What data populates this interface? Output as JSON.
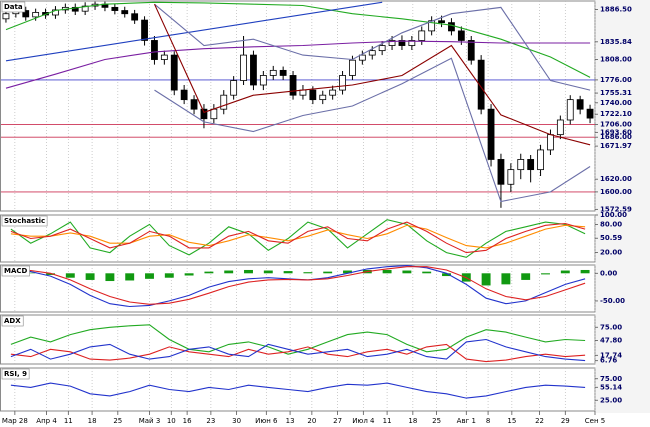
{
  "chart_data": [
    {
      "type": "candlestick",
      "title": "Data",
      "xlim": [
        -0.5,
        59.5
      ],
      "ylim": [
        1570,
        1900
      ],
      "up_color": "#ffffff",
      "down_color": "#000000",
      "open": [
        1872,
        1880,
        1885,
        1875,
        1882,
        1878,
        1886,
        1890,
        1884,
        1892,
        1895,
        1890,
        1885,
        1880,
        1870,
        1838,
        1808,
        1815,
        1760,
        1745,
        1730,
        1715,
        1730,
        1752,
        1775,
        1815,
        1768,
        1783,
        1791,
        1783,
        1752,
        1760,
        1745,
        1752,
        1760,
        1783,
        1807,
        1815,
        1822,
        1830,
        1838,
        1830,
        1838,
        1853,
        1869,
        1866,
        1853,
        1838,
        1807,
        1730,
        1651,
        1612,
        1635,
        1651,
        1635,
        1666,
        1690,
        1713,
        1745,
        1730
      ],
      "high": [
        1886,
        1891,
        1891,
        1888,
        1888,
        1892,
        1896,
        1896,
        1898,
        1899,
        1899,
        1896,
        1891,
        1886,
        1876,
        1845,
        1822,
        1821,
        1768,
        1752,
        1738,
        1738,
        1760,
        1782,
        1845,
        1822,
        1790,
        1798,
        1797,
        1790,
        1768,
        1766,
        1759,
        1767,
        1790,
        1814,
        1822,
        1829,
        1837,
        1845,
        1846,
        1845,
        1860,
        1876,
        1877,
        1873,
        1860,
        1845,
        1815,
        1738,
        1660,
        1645,
        1660,
        1658,
        1674,
        1698,
        1720,
        1752,
        1751,
        1737
      ],
      "low": [
        1866,
        1874,
        1869,
        1869,
        1872,
        1872,
        1880,
        1878,
        1878,
        1886,
        1884,
        1879,
        1874,
        1864,
        1830,
        1800,
        1800,
        1752,
        1738,
        1722,
        1700,
        1708,
        1722,
        1745,
        1768,
        1760,
        1760,
        1776,
        1776,
        1745,
        1745,
        1738,
        1738,
        1745,
        1753,
        1776,
        1800,
        1808,
        1815,
        1823,
        1823,
        1823,
        1831,
        1846,
        1859,
        1846,
        1831,
        1800,
        1722,
        1640,
        1575,
        1600,
        1620,
        1615,
        1625,
        1658,
        1683,
        1706,
        1722,
        1708
      ],
      "close": [
        1880,
        1885,
        1875,
        1882,
        1878,
        1886,
        1890,
        1884,
        1892,
        1895,
        1890,
        1885,
        1880,
        1870,
        1838,
        1808,
        1815,
        1760,
        1745,
        1730,
        1715,
        1730,
        1752,
        1775,
        1815,
        1768,
        1783,
        1791,
        1783,
        1752,
        1760,
        1745,
        1752,
        1760,
        1783,
        1807,
        1815,
        1822,
        1830,
        1838,
        1830,
        1838,
        1853,
        1869,
        1866,
        1853,
        1838,
        1807,
        1730,
        1651,
        1612,
        1635,
        1651,
        1635,
        1666,
        1690,
        1713,
        1745,
        1730,
        1716
      ],
      "series": [
        {
          "color": "#22aa22",
          "x": [
            0,
            5,
            10,
            15,
            20,
            25,
            30,
            35,
            40,
            45,
            50,
            55,
            59
          ],
          "values": [
            1855,
            1885,
            1895,
            1898,
            1897,
            1895,
            1893,
            1880,
            1872,
            1862,
            1840,
            1812,
            1780
          ]
        },
        {
          "color": "#7a1fa2",
          "x": [
            0,
            5,
            10,
            15,
            20,
            25,
            30,
            35,
            40,
            45,
            50,
            55,
            59
          ],
          "values": [
            1763,
            1785,
            1808,
            1820,
            1825,
            1828,
            1830,
            1834,
            1837,
            1836,
            1834,
            1834,
            1834
          ]
        },
        {
          "color": "#1f3fbf",
          "x": [
            0,
            38
          ],
          "values": [
            1806,
            1898
          ]
        },
        {
          "color": "#6b6fa8",
          "x": [
            0,
            5,
            10,
            15,
            20,
            25,
            30,
            35,
            40,
            45,
            50,
            55,
            59
          ],
          "values": [
            null,
            null,
            null,
            1895,
            1830,
            1840,
            1815,
            1808,
            1850,
            1880,
            1890,
            1775,
            1760
          ]
        },
        {
          "color": "#6b6fa8",
          "x": [
            0,
            5,
            10,
            15,
            20,
            25,
            30,
            35,
            40,
            45,
            50,
            55,
            59
          ],
          "values": [
            null,
            null,
            null,
            1760,
            1710,
            1695,
            1720,
            1735,
            1770,
            1810,
            1585,
            1600,
            1640
          ]
        },
        {
          "color": "#8b0000",
          "x": [
            0,
            5,
            10,
            15,
            20,
            25,
            30,
            35,
            40,
            45,
            50,
            55,
            59
          ],
          "values": [
            null,
            null,
            null,
            1895,
            1725,
            1752,
            1760,
            1768,
            1783,
            1830,
            1721,
            1690,
            1674
          ]
        }
      ],
      "hlines": [
        {
          "value": 1776,
          "color": "#4444cc"
        },
        {
          "value": 1706,
          "color": "#cc3355"
        },
        {
          "value": 1686,
          "color": "#cc3355"
        },
        {
          "value": 1600,
          "color": "#cc3355"
        }
      ],
      "yticks": [
        {
          "value": 1886.5,
          "label": "1886.50"
        },
        {
          "value": 1835.84,
          "label": "1835.84"
        },
        {
          "value": 1808,
          "label": "1808.00"
        },
        {
          "value": 1776,
          "label": "1776.00"
        },
        {
          "value": 1755.31,
          "label": "1755.31"
        },
        {
          "value": 1740,
          "label": "1740.00"
        },
        {
          "value": 1722.1,
          "label": "1722.10"
        },
        {
          "value": 1706,
          "label": "1706.00"
        },
        {
          "value": 1693.6,
          "label": "1693.60"
        },
        {
          "value": 1686,
          "label": "1686.00"
        },
        {
          "value": 1671.97,
          "label": "1671.97"
        },
        {
          "value": 1620,
          "label": "1620.00"
        },
        {
          "value": 1600,
          "label": "1600.00"
        },
        {
          "value": 1572.59,
          "label": "1572.59"
        }
      ]
    },
    {
      "type": "line",
      "title": "Stochastic",
      "xlim": [
        -0.5,
        29.5
      ],
      "ylim": [
        0,
        100
      ],
      "series": [
        {
          "color": "#22aa22",
          "values": [
            70,
            40,
            60,
            85,
            30,
            20,
            55,
            80,
            35,
            15,
            40,
            75,
            60,
            25,
            50,
            85,
            70,
            30,
            60,
            90,
            80,
            45,
            20,
            10,
            40,
            65,
            75,
            85,
            80,
            60
          ]
        },
        {
          "color": "#ff8c00",
          "values": [
            60,
            55,
            55,
            62,
            55,
            40,
            40,
            55,
            58,
            42,
            35,
            45,
            58,
            52,
            45,
            55,
            68,
            58,
            50,
            60,
            78,
            70,
            52,
            35,
            30,
            40,
            55,
            70,
            78,
            75
          ]
        },
        {
          "color": "#dd2222",
          "values": [
            65,
            50,
            55,
            70,
            50,
            30,
            40,
            65,
            55,
            30,
            30,
            55,
            65,
            45,
            40,
            65,
            75,
            50,
            45,
            70,
            85,
            65,
            40,
            20,
            25,
            50,
            65,
            78,
            82,
            70
          ]
        }
      ],
      "yticks": [
        {
          "value": 100,
          "label": "100.00"
        },
        {
          "value": 80,
          "label": "80.00"
        },
        {
          "value": 50.59,
          "label": "50.59"
        },
        {
          "value": 20,
          "label": "20.00"
        }
      ]
    },
    {
      "type": "bar",
      "title": "MACD",
      "xlim": [
        -0.5,
        29.5
      ],
      "ylim": [
        -70,
        15
      ],
      "series": [
        {
          "style": "bar",
          "color": "#119911",
          "values": [
            2,
            1,
            -3,
            -8,
            -12,
            -14,
            -13,
            -10,
            -8,
            -4,
            3,
            5,
            6,
            5,
            4,
            2,
            3,
            5,
            6,
            6,
            5,
            3,
            -5,
            -15,
            -22,
            -20,
            -12,
            -2,
            5,
            6
          ]
        },
        {
          "style": "line",
          "color": "#2233cc",
          "values": [
            5,
            3,
            -5,
            -20,
            -40,
            -55,
            -60,
            -58,
            -50,
            -40,
            -25,
            -15,
            -10,
            -8,
            -10,
            -12,
            -8,
            0,
            8,
            12,
            14,
            10,
            0,
            -20,
            -45,
            -55,
            -50,
            -35,
            -20,
            -10
          ]
        },
        {
          "style": "line",
          "color": "#dd2222",
          "values": [
            6,
            5,
            0,
            -12,
            -28,
            -42,
            -52,
            -56,
            -54,
            -47,
            -36,
            -24,
            -16,
            -12,
            -11,
            -12,
            -10,
            -4,
            3,
            8,
            12,
            12,
            6,
            -8,
            -28,
            -42,
            -48,
            -42,
            -30,
            -18
          ]
        }
      ],
      "yticks": [
        {
          "value": 0,
          "label": "0.00"
        },
        {
          "value": -50,
          "label": "-50.00"
        }
      ]
    },
    {
      "type": "line",
      "title": "ADX",
      "xlim": [
        -0.5,
        29.5
      ],
      "ylim": [
        0,
        100
      ],
      "series": [
        {
          "color": "#22aa22",
          "values": [
            40,
            55,
            45,
            60,
            70,
            75,
            78,
            80,
            50,
            30,
            25,
            40,
            45,
            35,
            20,
            30,
            45,
            60,
            65,
            60,
            40,
            25,
            30,
            55,
            70,
            65,
            55,
            45,
            50,
            48
          ]
        },
        {
          "color": "#dd2222",
          "values": [
            20,
            15,
            30,
            25,
            10,
            8,
            12,
            20,
            35,
            25,
            20,
            15,
            30,
            20,
            25,
            35,
            20,
            15,
            25,
            30,
            20,
            35,
            40,
            10,
            5,
            8,
            15,
            20,
            15,
            18
          ]
        },
        {
          "color": "#2233cc",
          "values": [
            15,
            30,
            10,
            20,
            35,
            40,
            20,
            10,
            15,
            30,
            35,
            20,
            15,
            40,
            30,
            20,
            25,
            30,
            15,
            20,
            30,
            15,
            10,
            45,
            50,
            35,
            25,
            15,
            10,
            7
          ]
        }
      ],
      "yticks": [
        {
          "value": 75,
          "label": "75.00"
        },
        {
          "value": 47.8,
          "label": "47.80"
        },
        {
          "value": 17.74,
          "label": "17.74"
        },
        {
          "value": 6.76,
          "label": "6.76"
        }
      ]
    },
    {
      "type": "line",
      "title": "RSI, 9",
      "xlim": [
        -0.5,
        29.5
      ],
      "ylim": [
        0,
        100
      ],
      "series": [
        {
          "color": "#2233cc",
          "values": [
            60,
            55,
            65,
            58,
            40,
            35,
            45,
            60,
            50,
            45,
            55,
            50,
            60,
            55,
            50,
            45,
            55,
            62,
            60,
            65,
            55,
            45,
            40,
            30,
            35,
            45,
            55,
            60,
            58,
            55
          ]
        }
      ],
      "yticks": [
        {
          "value": 75,
          "label": "75.00"
        },
        {
          "value": 55.14,
          "label": "55.14"
        },
        {
          "value": 25,
          "label": "25.00"
        }
      ],
      "xticks": [
        {
          "value": 0.2,
          "label": "Мар 28"
        },
        {
          "value": 1.8,
          "label": "Апр 4"
        },
        {
          "value": 2.9,
          "label": "11"
        },
        {
          "value": 4.1,
          "label": "18"
        },
        {
          "value": 5.4,
          "label": "25"
        },
        {
          "value": 7.0,
          "label": "Май 3"
        },
        {
          "value": 8.1,
          "label": "10"
        },
        {
          "value": 8.9,
          "label": "16"
        },
        {
          "value": 10.1,
          "label": "23"
        },
        {
          "value": 11.4,
          "label": "30"
        },
        {
          "value": 12.9,
          "label": "Июн 6"
        },
        {
          "value": 14.1,
          "label": "13"
        },
        {
          "value": 15.2,
          "label": "20"
        },
        {
          "value": 16.5,
          "label": "27"
        },
        {
          "value": 17.8,
          "label": "Июл 4"
        },
        {
          "value": 19.0,
          "label": "11"
        },
        {
          "value": 20.3,
          "label": "18"
        },
        {
          "value": 21.5,
          "label": "25"
        },
        {
          "value": 23.0,
          "label": "Авг 1"
        },
        {
          "value": 24.1,
          "label": "8"
        },
        {
          "value": 25.3,
          "label": "15"
        },
        {
          "value": 26.7,
          "label": "22"
        },
        {
          "value": 28.0,
          "label": "29"
        },
        {
          "value": 29.5,
          "label": "Сен 5"
        }
      ]
    }
  ]
}
